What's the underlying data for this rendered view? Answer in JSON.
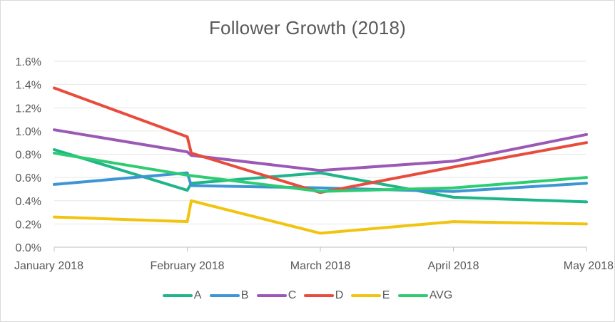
{
  "chart_data": {
    "type": "line",
    "title": "Follower Growth (2018)",
    "xlabel": "",
    "ylabel": "",
    "categories": [
      "January 2018",
      "February 2018",
      "March 2018",
      "April 2018",
      "May 2018"
    ],
    "y_ticks": [
      "0.0%",
      "0.2%",
      "0.4%",
      "0.6%",
      "0.8%",
      "1.0%",
      "1.2%",
      "1.4%",
      "1.6%"
    ],
    "ylim": [
      0,
      1.6
    ],
    "y_unit": "%",
    "grid": "horizontal",
    "legend_position": "bottom",
    "series": [
      {
        "name": "A",
        "color": "#1fb58a",
        "points": [
          [
            0,
            0.84
          ],
          [
            1,
            0.49
          ],
          [
            1.03,
            0.55
          ],
          [
            2,
            0.64
          ],
          [
            3,
            0.43
          ],
          [
            4,
            0.39
          ]
        ]
      },
      {
        "name": "B",
        "color": "#3d95d4",
        "points": [
          [
            0,
            0.54
          ],
          [
            1,
            0.64
          ],
          [
            1.03,
            0.53
          ],
          [
            2,
            0.51
          ],
          [
            3,
            0.48
          ],
          [
            4,
            0.55
          ]
        ]
      },
      {
        "name": "C",
        "color": "#9b59b6",
        "points": [
          [
            0,
            1.01
          ],
          [
            1,
            0.82
          ],
          [
            1.03,
            0.79
          ],
          [
            2,
            0.66
          ],
          [
            3,
            0.74
          ],
          [
            4,
            0.97
          ]
        ]
      },
      {
        "name": "D",
        "color": "#e74c3c",
        "points": [
          [
            0,
            1.37
          ],
          [
            1,
            0.95
          ],
          [
            1.03,
            0.81
          ],
          [
            2,
            0.47
          ],
          [
            3,
            0.69
          ],
          [
            4,
            0.9
          ]
        ]
      },
      {
        "name": "E",
        "color": "#f1c40f",
        "points": [
          [
            0,
            0.26
          ],
          [
            1,
            0.22
          ],
          [
            1.03,
            0.4
          ],
          [
            2,
            0.12
          ],
          [
            3,
            0.22
          ],
          [
            4,
            0.2
          ]
        ]
      },
      {
        "name": "AVG",
        "color": "#2ecc71",
        "points": [
          [
            0,
            0.81
          ],
          [
            1,
            0.62
          ],
          [
            2,
            0.48
          ],
          [
            3,
            0.51
          ],
          [
            4,
            0.6
          ]
        ]
      }
    ]
  }
}
